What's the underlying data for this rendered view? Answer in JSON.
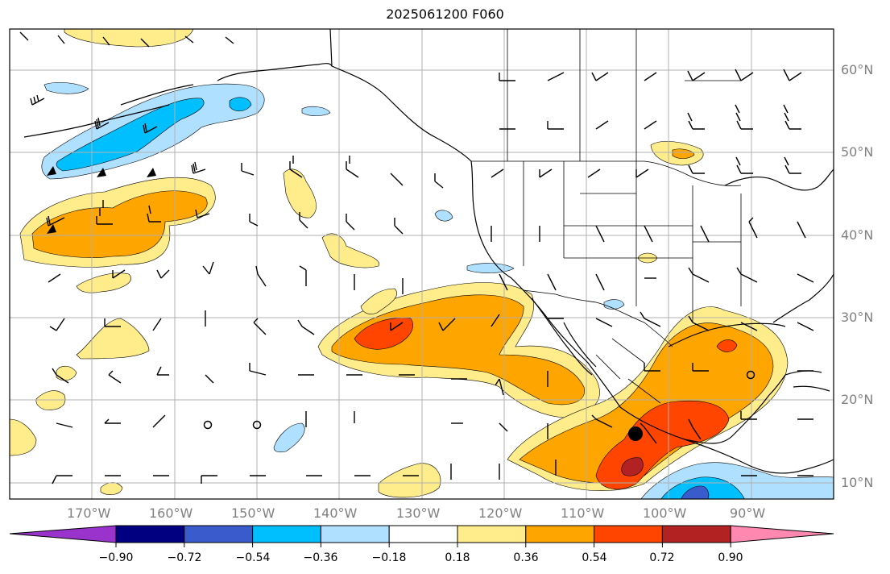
{
  "title": "2025061200 F060",
  "map": {
    "projection": "plate-carree",
    "lon_range": [
      -180,
      -80
    ],
    "lat_range": [
      8,
      65
    ],
    "gridlines": true,
    "lon_ticks": [
      {
        "lon": -170,
        "label": "170°W"
      },
      {
        "lon": -160,
        "label": "160°W"
      },
      {
        "lon": -150,
        "label": "150°W"
      },
      {
        "lon": -140,
        "label": "140°W"
      },
      {
        "lon": -130,
        "label": "130°W"
      },
      {
        "lon": -120,
        "label": "120°W"
      },
      {
        "lon": -110,
        "label": "110°W"
      },
      {
        "lon": -100,
        "label": "100°W"
      },
      {
        "lon": -90,
        "label": "90°W"
      }
    ],
    "lat_ticks": [
      {
        "lat": 60,
        "label": "60°N"
      },
      {
        "lat": 50,
        "label": "50°N"
      },
      {
        "lat": 40,
        "label": "40°N"
      },
      {
        "lat": 30,
        "label": "30°N"
      },
      {
        "lat": 20,
        "label": "20°N"
      },
      {
        "lat": 10,
        "label": "10°N"
      }
    ],
    "markers": [
      {
        "name": "large-dot-marker",
        "lon": -104,
        "lat": 16,
        "filled": true
      },
      {
        "name": "open-circle-marker",
        "lon": -90,
        "lat": 23,
        "filled": false
      },
      {
        "name": "open-circle-marker",
        "lon": -156,
        "lat": 17,
        "filled": false
      },
      {
        "name": "open-circle-marker",
        "lon": -150,
        "lat": 17,
        "filled": false
      }
    ]
  },
  "colorbar": {
    "levels": [
      "−0.90",
      "−0.72",
      "−0.54",
      "−0.36",
      "−0.18",
      "0.18",
      "0.36",
      "0.54",
      "0.72",
      "0.90"
    ],
    "colors": [
      "#9933cc",
      "#000080",
      "#3a5bcc",
      "#00bfff",
      "#b0e0ff",
      "#ffffff",
      "#ffec8b",
      "#ffa500",
      "#ff4500",
      "#b22222",
      "#ff88b0"
    ],
    "extend": "both"
  },
  "palette": {
    "yellow": "#ffec8b",
    "orange": "#ffa500",
    "red": "#ff4500",
    "darkred": "#b22222",
    "lightblue": "#b0e0ff",
    "blue": "#00bfff",
    "medblue": "#3a5bcc",
    "grid": "#b0b0b0",
    "label": "#808080"
  }
}
